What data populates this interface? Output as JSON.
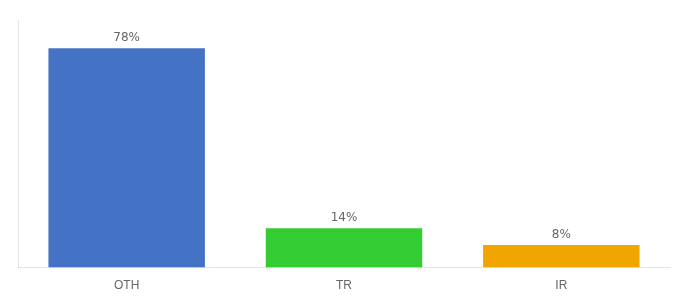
{
  "chart_data": {
    "type": "bar",
    "categories": [
      "OTH",
      "TR",
      "IR"
    ],
    "values": [
      78,
      14,
      8
    ],
    "value_labels": [
      "78%",
      "14%",
      "8%"
    ],
    "data_labels": true,
    "colors": [
      "#4472c4",
      "#33cc33",
      "#f0a500"
    ],
    "ylim": [
      0,
      88
    ],
    "tick_labels": "x",
    "grid": false
  }
}
